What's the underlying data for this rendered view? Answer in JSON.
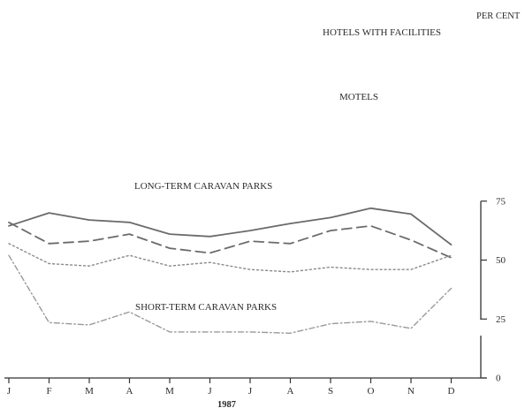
{
  "chart_data": {
    "type": "line",
    "title": "",
    "xlabel": "1987",
    "ylabel": "PER CENT",
    "categories": [
      "J",
      "F",
      "M",
      "A",
      "M",
      "J",
      "J",
      "A",
      "S",
      "O",
      "N",
      "D"
    ],
    "ylim": [
      0,
      75
    ],
    "y_ticks": [
      0,
      25,
      50,
      75
    ],
    "y_axis_position": "right",
    "grid": false,
    "legend": "none",
    "series": [
      {
        "name": "HOTELS WITH FACILITIES",
        "style": "solid",
        "color": "#6b6b6b",
        "values": [
          64.5,
          70.0,
          67.0,
          66.0,
          61.0,
          60.0,
          62.5,
          65.5,
          68.0,
          72.0,
          69.5,
          56.5
        ]
      },
      {
        "name": "MOTELS",
        "style": "dashed",
        "color": "#6b6b6b",
        "values": [
          66.0,
          57.0,
          58.0,
          61.0,
          55.0,
          53.0,
          58.0,
          57.0,
          62.5,
          64.5,
          58.5,
          51.0
        ]
      },
      {
        "name": "LONG-TERM CARAVAN PARKS",
        "style": "dotted",
        "color": "#8a8a8a",
        "values": [
          57.0,
          48.5,
          47.5,
          52.0,
          47.5,
          49.0,
          46.0,
          45.0,
          47.0,
          46.0,
          46.0,
          52.0
        ]
      },
      {
        "name": "SHORT-TERM CARAVAN PARKS",
        "style": "dash-dot",
        "color": "#9a9a9a",
        "values": [
          52.0,
          23.5,
          22.5,
          28.0,
          19.5,
          19.5,
          19.5,
          19.0,
          23.0,
          24.0,
          21.0,
          38.0
        ]
      }
    ]
  },
  "labels": {
    "y_axis_title": "PER CENT",
    "x_axis_year": "1987",
    "hotels": "HOTELS WITH FACILITIES",
    "motels": "MOTELS",
    "long_term": "LONG-TERM CARAVAN PARKS",
    "short_term": "SHORT-TERM CARAVAN PARKS"
  }
}
